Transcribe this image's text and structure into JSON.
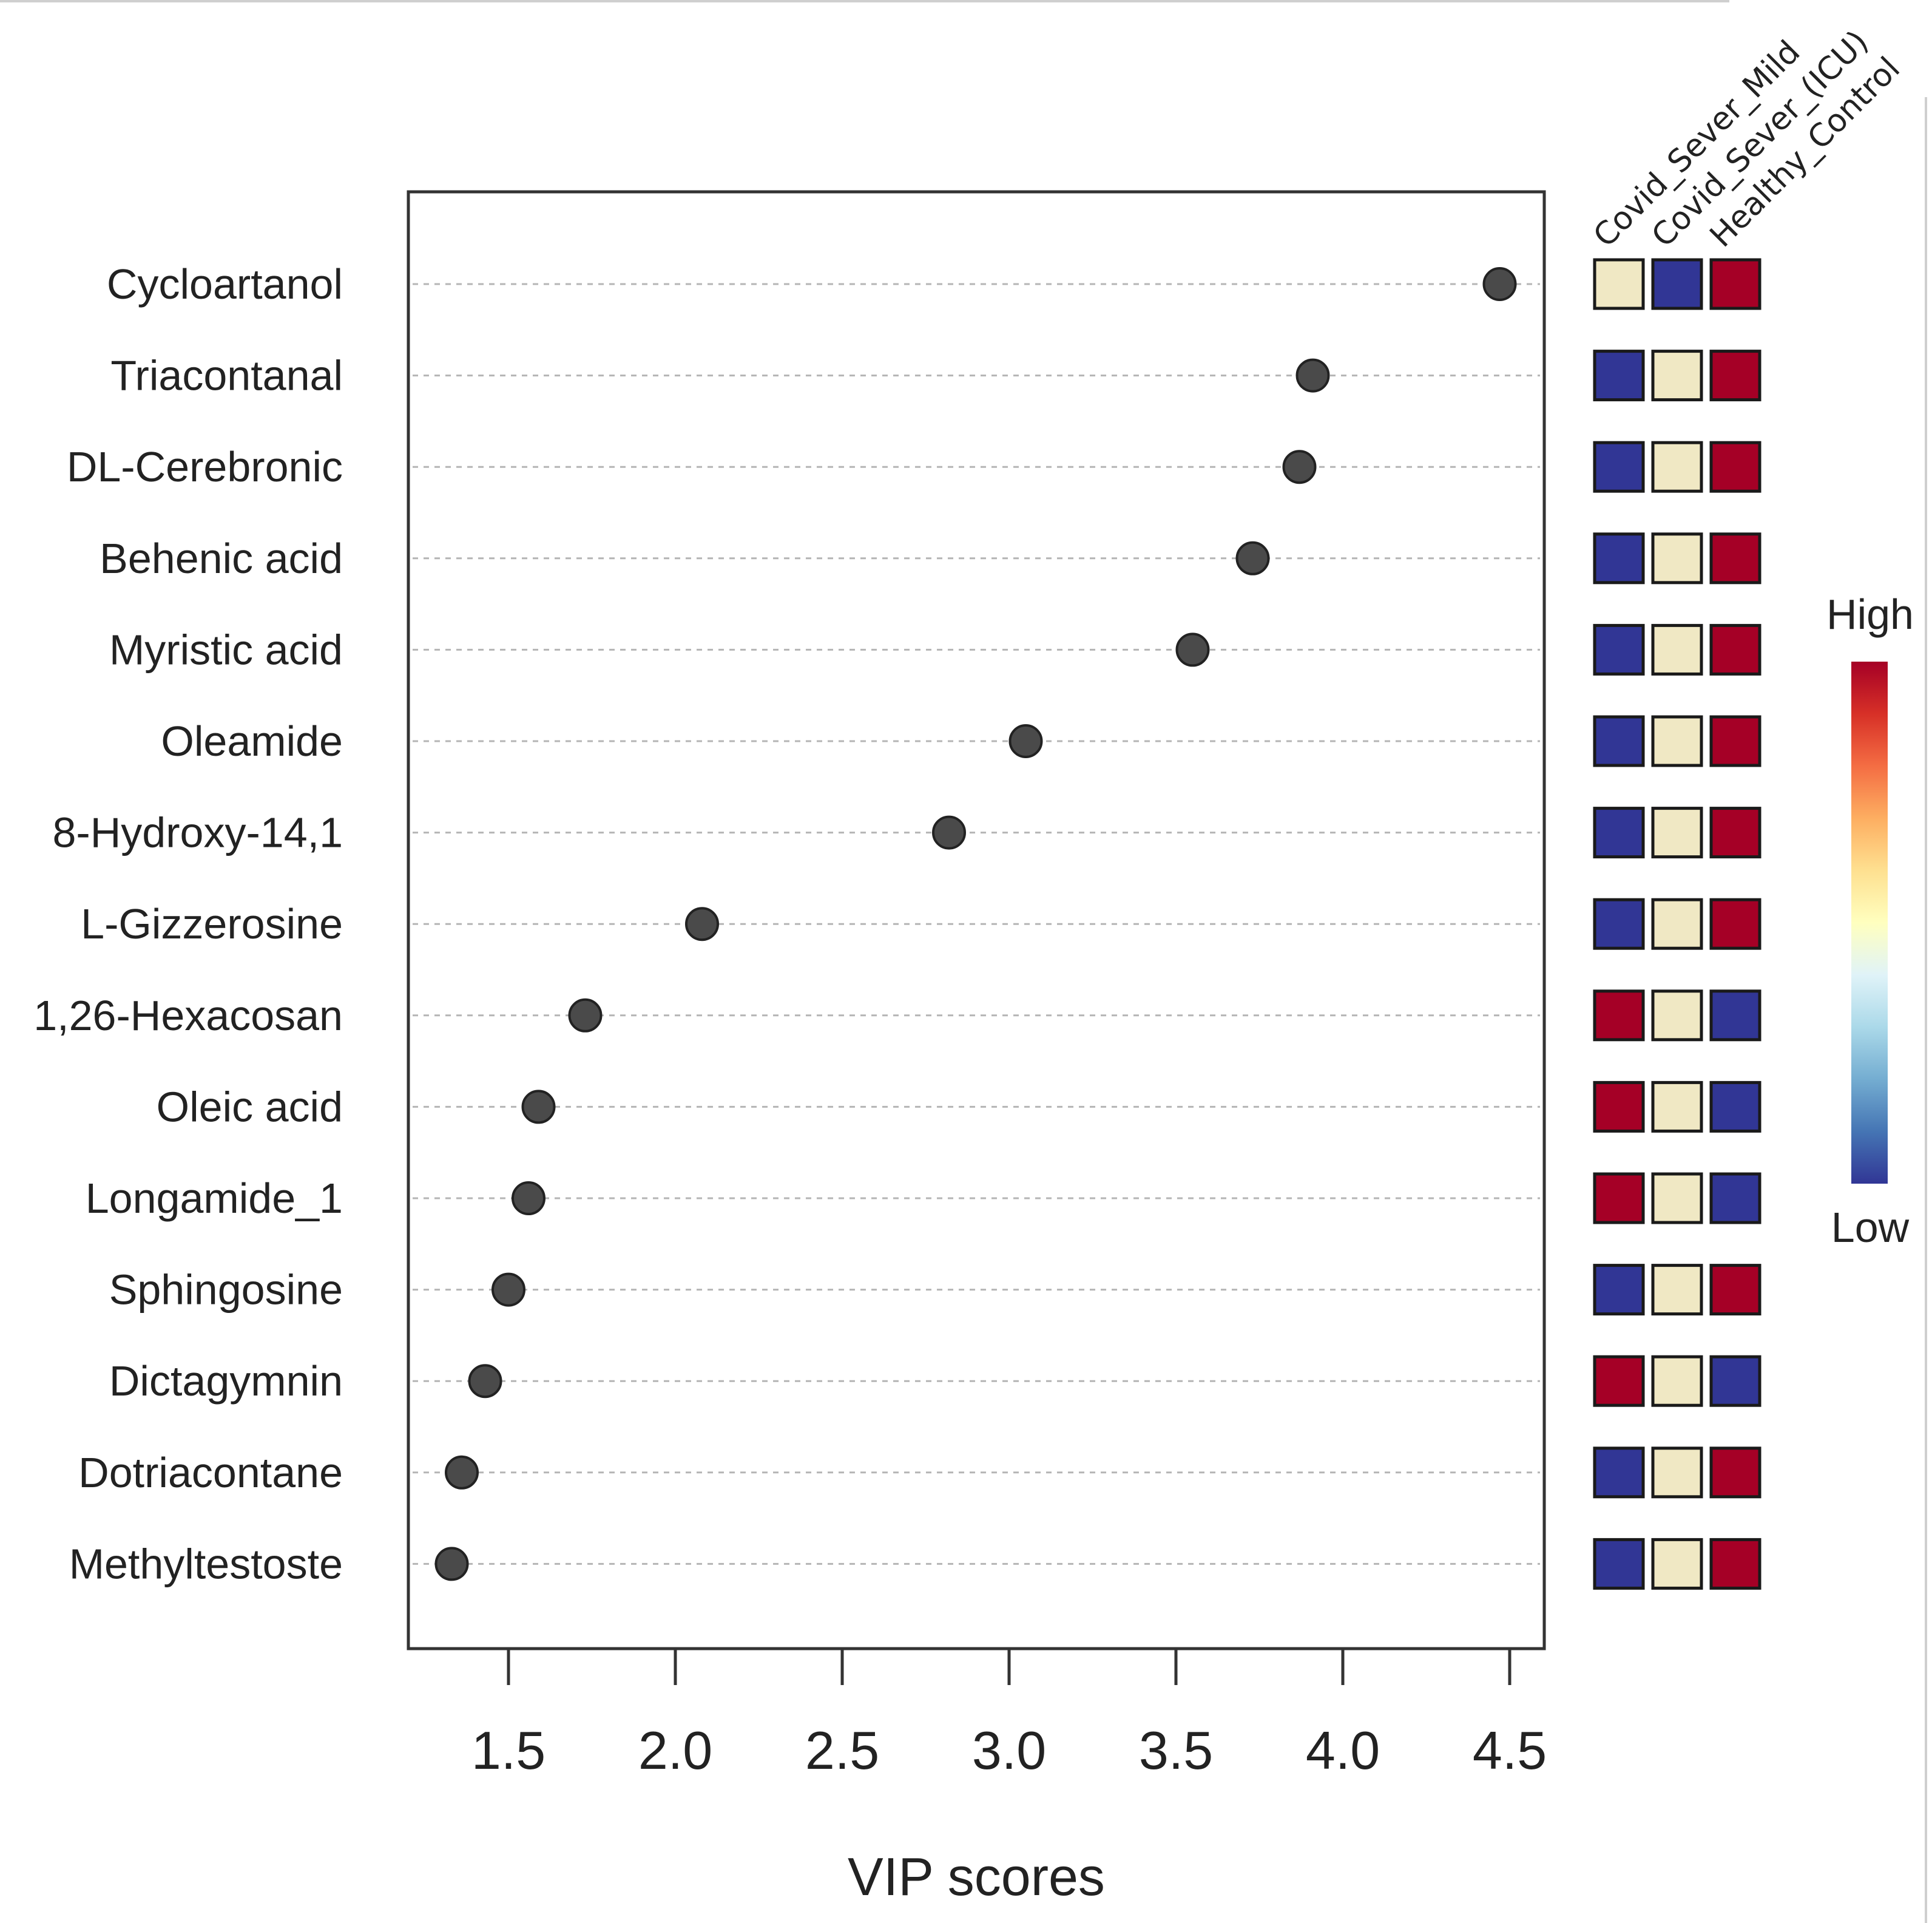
{
  "chart_data": {
    "type": "scatter",
    "xlabel": "VIP scores",
    "xlim": [
      1.2,
      4.6
    ],
    "xticks": [
      1.5,
      2.0,
      2.5,
      3.0,
      3.5,
      4.0,
      4.5
    ],
    "xtick_labels": [
      "1.5",
      "2.0",
      "2.5",
      "3.0",
      "3.5",
      "4.0",
      "4.5"
    ],
    "grid": "horizontal dashed guide per row",
    "categories": [
      "Cycloartanol",
      "Triacontanal",
      "DL-Cerebronic",
      "Behenic acid",
      "Myristic acid",
      "Oleamide",
      "8-Hydroxy-14,1",
      "L-Gizzerosine",
      "1,26-Hexacosan",
      "Oleic acid",
      "Longamide_1",
      "Sphingosine",
      "Dictagymnin",
      "Dotriacontane",
      "Methyltestoste"
    ],
    "values": [
      4.47,
      3.91,
      3.87,
      3.73,
      3.55,
      3.05,
      2.82,
      2.08,
      1.73,
      1.59,
      1.56,
      1.5,
      1.43,
      1.36,
      1.33
    ],
    "heatmap": {
      "groups": [
        "Covid_Sever_Mild",
        "Covid_Sever_(ICU)",
        "Healthy_Control"
      ],
      "levels": [
        [
          "mid",
          "low",
          "high"
        ],
        [
          "low",
          "mid",
          "high"
        ],
        [
          "low",
          "mid",
          "high"
        ],
        [
          "low",
          "mid",
          "high"
        ],
        [
          "low",
          "mid",
          "high"
        ],
        [
          "low",
          "mid",
          "high"
        ],
        [
          "low",
          "mid",
          "high"
        ],
        [
          "low",
          "mid",
          "high"
        ],
        [
          "high",
          "mid",
          "low"
        ],
        [
          "high",
          "mid",
          "low"
        ],
        [
          "high",
          "mid",
          "low"
        ],
        [
          "low",
          "mid",
          "high"
        ],
        [
          "high",
          "mid",
          "low"
        ],
        [
          "low",
          "mid",
          "high"
        ],
        [
          "low",
          "mid",
          "high"
        ]
      ],
      "colors": {
        "high": "#a50026",
        "mid": "#f0e8c4",
        "low": "#313695"
      }
    },
    "legend": {
      "high_label": "High",
      "low_label": "Low",
      "gradient": [
        "#a50026",
        "#d73027",
        "#f46d43",
        "#fdae61",
        "#fee090",
        "#ffffbf",
        "#e0f3f8",
        "#abd9e9",
        "#74add1",
        "#4575b4",
        "#313695"
      ]
    }
  }
}
